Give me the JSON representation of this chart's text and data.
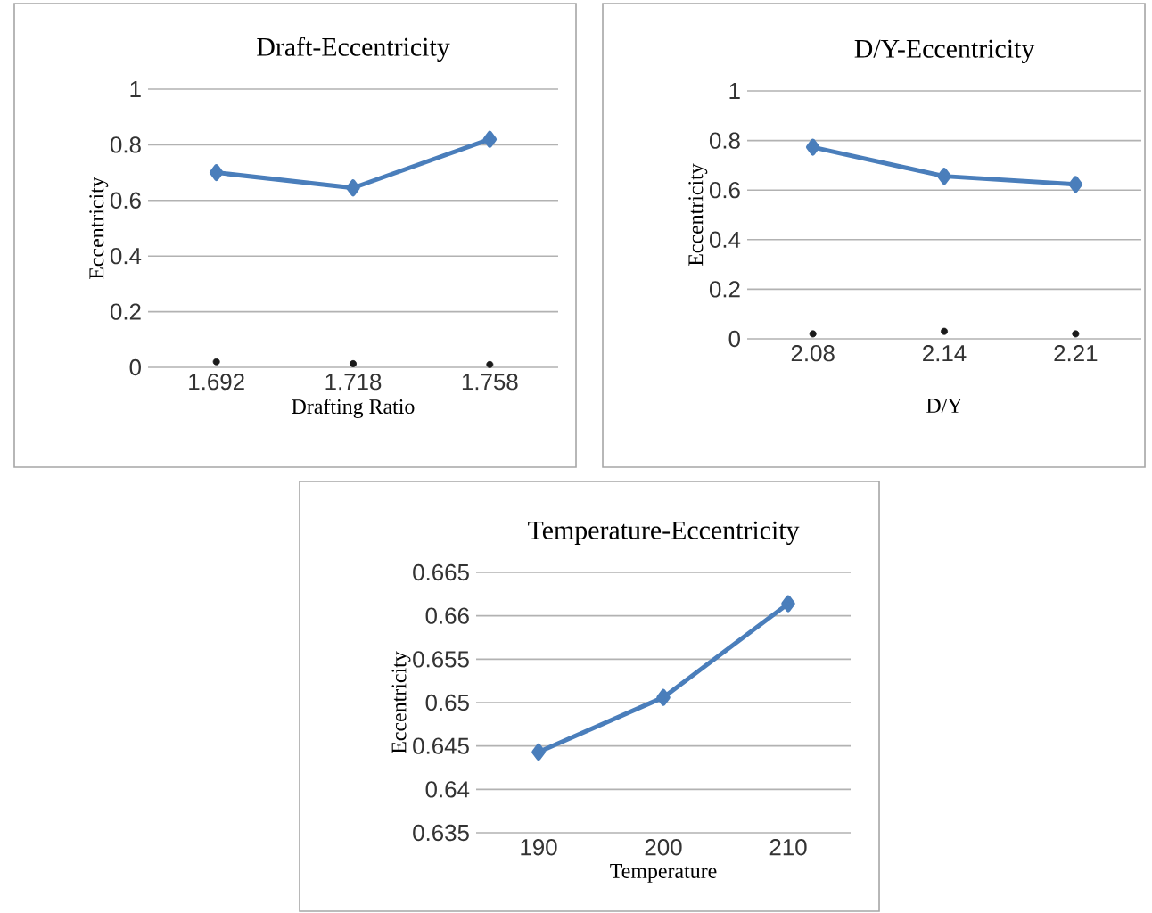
{
  "chart_data": [
    {
      "type": "line",
      "title": "Draft-Eccentricity",
      "xlabel": "Drafting Ratio",
      "ylabel": "Eccentricity",
      "categories": [
        "1.692",
        "1.718",
        "1.758"
      ],
      "ylim": [
        0,
        1
      ],
      "yticks": [
        0,
        0.2,
        0.4,
        0.6,
        0.8,
        1
      ],
      "grid": "y",
      "series": [
        {
          "color": "#4a7ebb",
          "marker": "diamond",
          "values": [
            0.7,
            0.645,
            0.82
          ]
        },
        {
          "type": "scatter",
          "color": "#1a1a1a",
          "marker": "circle",
          "values": [
            0.02,
            0.013,
            0.01
          ]
        }
      ]
    },
    {
      "type": "line",
      "title": "D/Y-Eccentricity",
      "xlabel": "D/Y",
      "ylabel": "Eccentricity",
      "categories": [
        "2.08",
        "2.14",
        "2.21"
      ],
      "ylim": [
        0,
        1
      ],
      "yticks": [
        0,
        0.2,
        0.4,
        0.6,
        0.8,
        1
      ],
      "grid": "y",
      "series": [
        {
          "color": "#4a7ebb",
          "marker": "diamond",
          "values": [
            0.773,
            0.656,
            0.623
          ]
        },
        {
          "type": "scatter",
          "color": "#1a1a1a",
          "marker": "circle",
          "values": [
            0.02,
            0.03,
            0.02
          ]
        }
      ]
    },
    {
      "type": "line",
      "title": "Temperature-Eccentricity",
      "xlabel": "Temperature",
      "ylabel": "Eccentricity",
      "categories": [
        "190",
        "200",
        "210"
      ],
      "ylim": [
        0.635,
        0.665
      ],
      "yticks": [
        0.635,
        0.64,
        0.645,
        0.65,
        0.655,
        0.66,
        0.665
      ],
      "grid": "y",
      "series": [
        {
          "color": "#4a7ebb",
          "marker": "diamond",
          "values": [
            0.6443,
            0.6506,
            0.6614
          ]
        }
      ]
    }
  ]
}
